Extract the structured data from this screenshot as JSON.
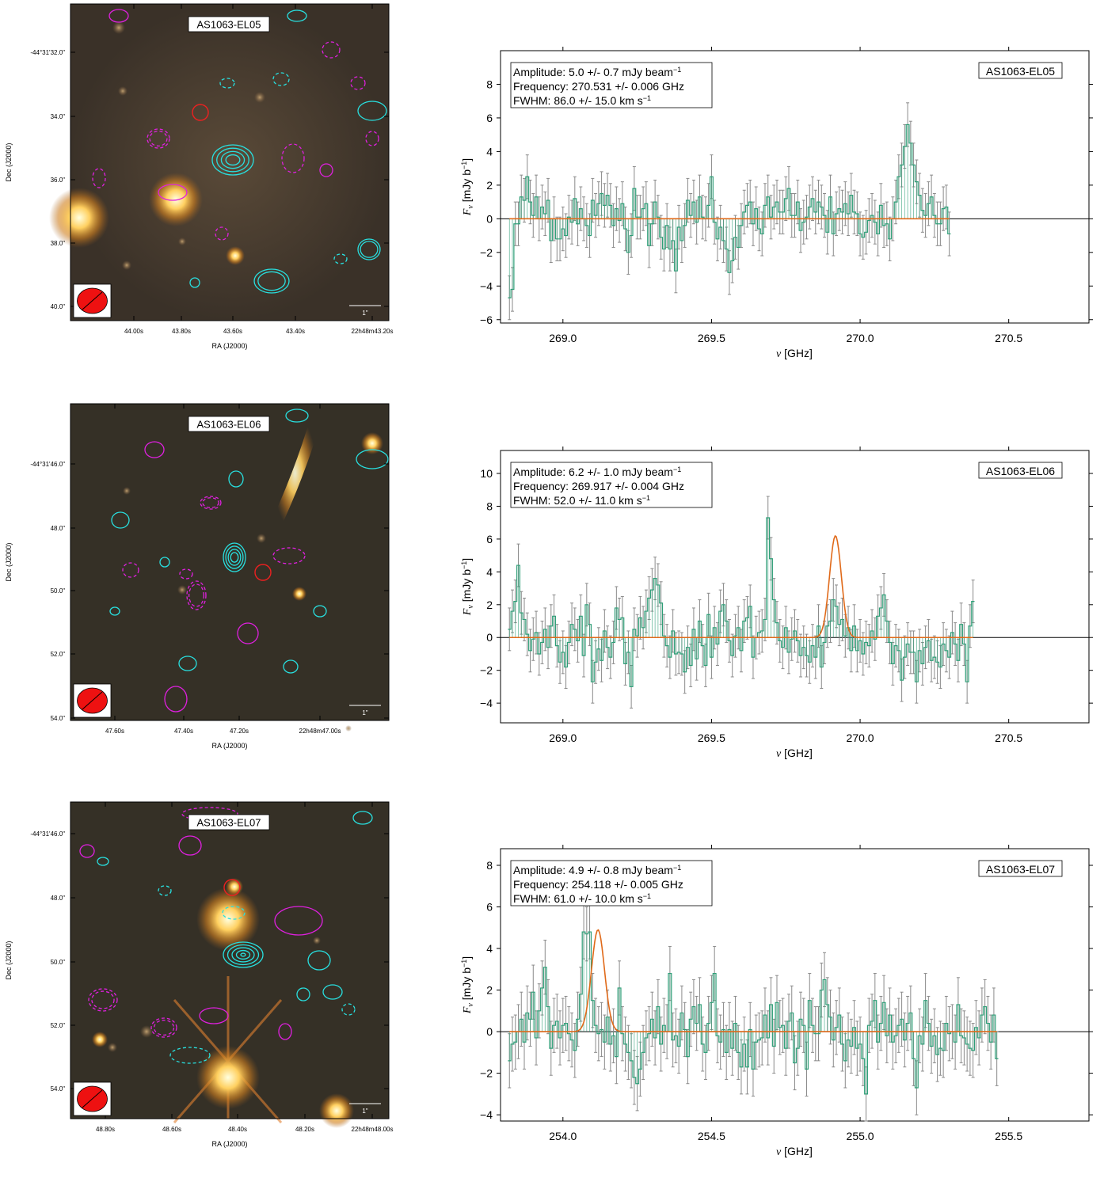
{
  "rows": [
    {
      "image": {
        "label": "AS1063-EL05",
        "dec_ticks": [
          "-44°31'32.0\"",
          "34.0\"",
          "36.0\"",
          "38.0\"",
          "40.0\""
        ],
        "ra_ticks": [
          "44.00s",
          "43.80s",
          "43.60s",
          "43.40s",
          "22h48m43.20s"
        ],
        "ylabel": "Dec (J2000)",
        "xlabel": "RA (J2000)",
        "scalebar": "1\""
      },
      "spectrum_label": "AS1063-EL05",
      "fit_text": [
        "Amplitude: 5.0 +/- 0.7 mJy beam",
        "Frequency: 270.531 +/- 0.006 GHz",
        "FWHM: 86.0 +/- 15.0 km s"
      ]
    },
    {
      "image": {
        "label": "AS1063-EL06",
        "dec_ticks": [
          "-44°31'46.0\"",
          "48.0\"",
          "50.0\"",
          "52.0\"",
          "54.0\""
        ],
        "ra_ticks": [
          "47.60s",
          "47.40s",
          "47.20s",
          "22h48m47.00s"
        ],
        "ylabel": "Dec (J2000)",
        "xlabel": "RA (J2000)",
        "scalebar": "1\""
      },
      "spectrum_label": "AS1063-EL06",
      "fit_text": [
        "Amplitude: 6.2 +/- 1.0 mJy beam",
        "Frequency: 269.917 +/- 0.004 GHz",
        "FWHM: 52.0 +/- 11.0 km s"
      ]
    },
    {
      "image": {
        "label": "AS1063-EL07",
        "dec_ticks": [
          "-44°31'46.0\"",
          "48.0\"",
          "50.0\"",
          "52.0\"",
          "54.0\""
        ],
        "ra_ticks": [
          "48.80s",
          "48.60s",
          "48.40s",
          "48.20s",
          "22h48m48.00s"
        ],
        "ylabel": "Dec (J2000)",
        "xlabel": "RA (J2000)",
        "scalebar": "1\""
      },
      "spectrum_label": "AS1063-EL07",
      "fit_text": [
        "Amplitude: 4.9 +/- 0.8 mJy beam",
        "Frequency: 254.118 +/- 0.005 GHz",
        "FWHM: 61.0 +/- 10.0 km s"
      ]
    }
  ],
  "colors": {
    "spectrum": "#2e9e77",
    "fit": "#e06a1a",
    "error": "#8a8a8a",
    "zero": "#000000",
    "contour_pos": "#28e0e0",
    "contour_neg": "#e020e0",
    "beam": "#ee1111"
  },
  "chart_data": [
    {
      "type": "line",
      "title": "",
      "legend_label": "AS1063-EL05",
      "xlabel": "ν [GHz]",
      "ylabel": "Fν [mJy b⁻¹]",
      "xlim": [
        268.79,
        270.77
      ],
      "ylim": [
        -6.2,
        10.0
      ],
      "xticks": [
        269.0,
        269.5,
        270.0,
        270.5
      ],
      "yticks": [
        -6,
        -4,
        -2,
        0,
        2,
        4,
        6,
        8
      ],
      "x_start": 268.82,
      "x_step": 0.01,
      "fit": {
        "amplitude": 5.0,
        "center": 270.531,
        "fwhm_kms": 86.0
      },
      "series": [
        {
          "name": "flux",
          "values": [
            -4.7,
            -4.2,
            -0.3,
            -0.3,
            1.3,
            1.1,
            2.5,
            1.0,
            0.2,
            1.3,
            0.0,
            0.7,
            0.3,
            1.1,
            -1.3,
            0.0,
            -1.2,
            -1.2,
            -0.6,
            -1.0,
            0.1,
            -0.2,
            1.2,
            -0.3,
            0.6,
            0.0,
            -0.4,
            -1.0,
            1.1,
            0.2,
            0.9,
            1.5,
            0.8,
            1.4,
            0.8,
            -0.4,
            0.6,
            -0.1,
            0.9,
            -0.6,
            -2.0,
            -1.0,
            1.8,
            0.1,
            0.1,
            0.6,
            0.9,
            -1.6,
            -0.3,
            1.0,
            0.1,
            -1.1,
            -1.8,
            -0.4,
            -1.8,
            -1.3,
            -3.1,
            -0.5,
            -1.3,
            -0.4,
            1.1,
            0.2,
            1.0,
            -0.2,
            1.3,
            0.1,
            0.0,
            0.8,
            2.5,
            -0.2,
            -1.2,
            -0.5,
            -1.3,
            -1.8,
            -3.2,
            -2.5,
            -1.1,
            -1.7,
            -0.4,
            0.4,
            0.8,
            1.0,
            -0.3,
            0.6,
            -0.6,
            -0.9,
            0.8,
            1.3,
            0.1,
            0.7,
            1.0,
            0.4,
            0.4,
            1.2,
            1.8,
            0.2,
            0.2,
            1.0,
            -0.7,
            -0.2,
            0.1,
            0.7,
            1.2,
            0.4,
            1.0,
            0.7,
            0.2,
            -0.8,
            1.3,
            -0.9,
            0.3,
            0.6,
            0.4,
            0.9,
            0.3,
            1.4,
            0.4,
            0.3,
            -0.9,
            -1.1,
            -0.8,
            -0.1,
            0.2,
            -0.2,
            -0.9,
            0.8,
            -0.4,
            -0.3,
            -1.2,
            0.0,
            1.0,
            2.5,
            3.2,
            4.3,
            5.6,
            4.5,
            3.2,
            2.2,
            1.4,
            0.5,
            0.2,
            0.9,
            1.3,
            0.2,
            -0.3,
            -0.3,
            0.6,
            0.7,
            -0.9
          ]
        }
      ]
    },
    {
      "type": "line",
      "title": "",
      "legend_label": "AS1063-EL06",
      "xlabel": "ν [GHz]",
      "ylabel": "Fν [mJy b⁻¹]",
      "xlim": [
        268.79,
        270.77
      ],
      "ylim": [
        -5.2,
        11.4
      ],
      "xticks": [
        269.0,
        269.5,
        270.0,
        270.5
      ],
      "yticks": [
        -4,
        -2,
        0,
        2,
        4,
        6,
        8,
        10
      ],
      "x_start": 268.82,
      "x_step": 0.01,
      "fit": {
        "amplitude": 6.2,
        "center": 269.917,
        "fwhm_kms": 52.0
      },
      "series": [
        {
          "name": "flux",
          "values": [
            0.5,
            1.6,
            2.2,
            4.4,
            1.5,
            1.1,
            0.2,
            -0.8,
            -0.1,
            0.3,
            -1.0,
            -0.3,
            0.5,
            -0.6,
            0.7,
            1.3,
            -0.5,
            -1.5,
            -0.9,
            -1.8,
            -0.3,
            0.8,
            0.5,
            -0.2,
            1.3,
            -1.1,
            2.0,
            0.8,
            -2.7,
            -1.5,
            -0.7,
            -1.4,
            0.4,
            -0.6,
            -1.2,
            -0.3,
            1.8,
            1.1,
            1.2,
            -1.6,
            -0.9,
            -3.0,
            0.5,
            0.1,
            1.2,
            0.6,
            1.6,
            2.4,
            2.9,
            3.6,
            3.2,
            2.1,
            0.1,
            -0.5,
            -1.2,
            0.4,
            -1.0,
            -0.9,
            -1.0,
            -2.1,
            -0.6,
            -1.7,
            0.5,
            -1.3,
            1.0,
            -0.5,
            -1.7,
            1.4,
            -1.2,
            0.6,
            -0.4,
            1.6,
            2.0,
            1.0,
            -0.2,
            -1.1,
            0.1,
            0.6,
            -0.8,
            1.0,
            1.2,
            1.9,
            -1.2,
            0.0,
            0.3,
            0.4,
            1.1,
            7.3,
            4.8,
            2.3,
            0.9,
            -0.2,
            -0.6,
            0.6,
            -0.9,
            -0.1,
            0.4,
            -0.2,
            -1.1,
            -0.6,
            -1.1,
            -1.5,
            -0.5,
            -1.2,
            0.7,
            -1.8,
            -0.3,
            0.7,
            1.0,
            2.3,
            1.9,
            0.8,
            1.1,
            0.1,
            0.6,
            -0.8,
            0.7,
            -0.8,
            -0.2,
            -1.0,
            -0.3,
            -0.5,
            0.4,
            -0.1,
            1.3,
            1.8,
            2.6,
            1.0,
            -0.3,
            -1.6,
            -0.5,
            -0.8,
            -2.6,
            -1.2,
            -0.4,
            -0.9,
            -0.9,
            -2.7,
            -0.8,
            -1.6,
            -0.6,
            -0.2,
            -1.4,
            -1.2,
            -1.5,
            -1.8,
            -0.4,
            -0.8,
            -1.2,
            0.3,
            -0.4,
            -1.4,
            0.8,
            -0.4,
            -2.7,
            0.7,
            2.2
          ]
        }
      ]
    },
    {
      "type": "line",
      "title": "",
      "legend_label": "AS1063-EL07",
      "xlabel": "ν [GHz]",
      "ylabel": "Fν [mJy b⁻¹]",
      "xlim": [
        253.79,
        255.77
      ],
      "ylim": [
        -4.3,
        8.8
      ],
      "xticks": [
        254.0,
        254.5,
        255.0,
        255.5
      ],
      "yticks": [
        -4,
        -2,
        0,
        2,
        4,
        6,
        8
      ],
      "x_start": 253.82,
      "x_step": 0.01,
      "fit": {
        "amplitude": 4.9,
        "center": 254.118,
        "fwhm_kms": 61.0
      },
      "series": [
        {
          "name": "flux",
          "values": [
            -1.4,
            -0.6,
            -0.5,
            0.0,
            0.6,
            -0.5,
            0.9,
            0.6,
            1.9,
            -0.3,
            1.0,
            2.1,
            3.1,
            1.2,
            -0.8,
            0.3,
            0.5,
            -0.3,
            0.3,
            0.4,
            -0.1,
            -0.4,
            -0.9,
            0.6,
            1.8,
            4.8,
            4.7,
            4.8,
            1.5,
            0.3,
            -0.1,
            0.1,
            -0.5,
            0.7,
            -0.6,
            -0.2,
            -1.2,
            2.1,
            -0.1,
            -0.6,
            -1.0,
            -1.4,
            -2.2,
            -2.5,
            -1.8,
            -1.0,
            -0.3,
            -0.1,
            0.6,
            -0.3,
            1.2,
            -0.6,
            0.3,
            0.0,
            2.8,
            -0.4,
            -0.2,
            -0.7,
            0.9,
            0.1,
            -1.2,
            0.6,
            1.2,
            0.4,
            1.3,
            -0.6,
            -1.0,
            0.4,
            1.4,
            2.8,
            -0.2,
            -0.5,
            0.1,
            -1.0,
            0.1,
            -0.8,
            0.4,
            -1.0,
            -1.7,
            -0.6,
            -1.7,
            0.1,
            -1.8,
            -0.5,
            -0.4,
            -0.3,
            0.8,
            -0.3,
            1.3,
            -0.7,
            1.4,
            0.2,
            0.3,
            -0.8,
            0.5,
            0.9,
            -1.5,
            -0.8,
            0.6,
            0.3,
            -1.8,
            1.5,
            0.3,
            -0.1,
            -0.1,
            2.0,
            2.5,
            1.3,
            0.7,
            -0.4,
            0.2,
            0.8,
            -0.6,
            -1.4,
            -0.4,
            -0.7,
            0.2,
            -0.8,
            -0.6,
            -1.3,
            -3.0,
            0.3,
            0.5,
            1.5,
            -0.5,
            0.4,
            1.4,
            -0.2,
            0.8,
            -0.5,
            -0.2,
            0.3,
            0.6,
            -0.4,
            0.4,
            0.9,
            -1.3,
            -2.7,
            -0.2,
            -0.6,
            1.5,
            0.4,
            -0.7,
            -0.2,
            -1.1,
            -0.8,
            -0.9,
            0.4,
            -0.1,
            0.0,
            -0.5,
            1.3,
            -0.2,
            -0.3,
            -0.6,
            -0.8,
            -0.9,
            0.2,
            -0.3,
            0.8,
            1.2,
            0.4,
            -0.5,
            0.8,
            -1.3
          ]
        }
      ]
    }
  ]
}
